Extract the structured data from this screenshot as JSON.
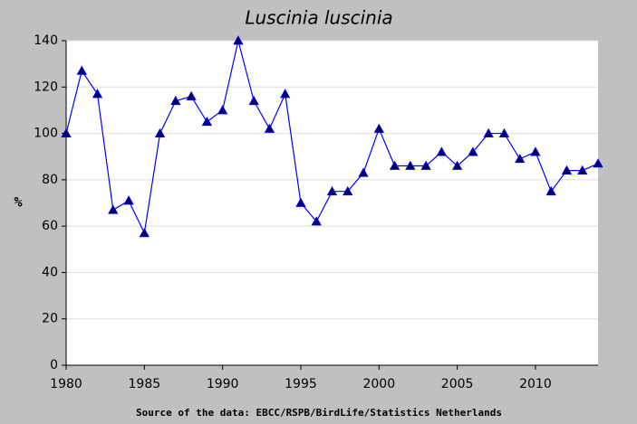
{
  "chart_data": {
    "type": "line",
    "title": "Luscinia luscinia",
    "ylabel": "%",
    "source": "Source of the data: EBCC/RSPB/BirdLife/Statistics Netherlands",
    "x": [
      1980,
      1981,
      1982,
      1983,
      1984,
      1985,
      1986,
      1987,
      1988,
      1989,
      1990,
      1991,
      1992,
      1993,
      1994,
      1995,
      1996,
      1997,
      1998,
      1999,
      2000,
      2001,
      2002,
      2003,
      2004,
      2005,
      2006,
      2007,
      2008,
      2009,
      2010,
      2011,
      2012,
      2013,
      2014
    ],
    "values": [
      100,
      127,
      117,
      67,
      71,
      57,
      100,
      114,
      116,
      105,
      110,
      140,
      114,
      102,
      117,
      70,
      62,
      75,
      75,
      83,
      102,
      86,
      86,
      86,
      92,
      86,
      92,
      100,
      100,
      89,
      92,
      75,
      84,
      84,
      87
    ],
    "color": "#0000ff",
    "marker_color": "#000066",
    "xlim": [
      1980,
      2014
    ],
    "xticks": [
      1980,
      1985,
      1990,
      1995,
      2000,
      2005,
      2010
    ],
    "ylim": [
      0,
      140
    ],
    "yticks": [
      0,
      20,
      40,
      60,
      80,
      100,
      120,
      140
    ],
    "grid": true
  }
}
